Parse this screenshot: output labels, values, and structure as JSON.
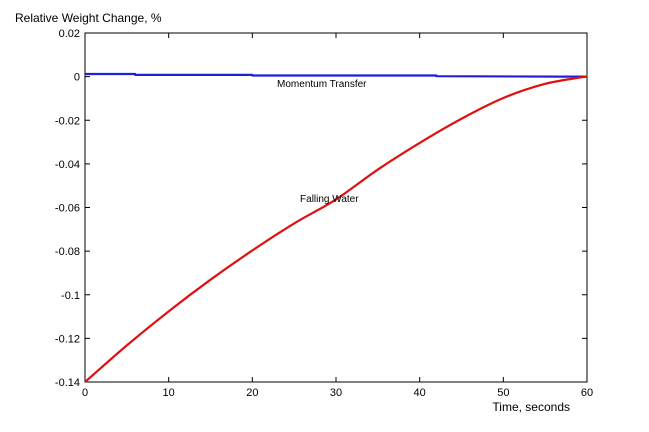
{
  "chart_data": {
    "type": "line",
    "title": "",
    "ylabel": "Relative Weight Change, %",
    "xlabel": "Time, seconds",
    "xlim": [
      0,
      60
    ],
    "ylim": [
      -0.14,
      0.02
    ],
    "x_ticks": [
      0,
      10,
      20,
      30,
      40,
      50,
      60
    ],
    "x_tick_labels": [
      "0",
      "10",
      "20",
      "30",
      "40",
      "50",
      "60"
    ],
    "y_ticks": [
      0.02,
      0,
      -0.02,
      -0.04,
      -0.06,
      -0.08,
      -0.1,
      -0.12,
      -0.14
    ],
    "y_tick_labels": [
      "0.02",
      "0",
      "-0.02",
      "-0.04",
      "-0.06",
      "-0.08",
      "-0.1",
      "-0.12",
      "-0.14"
    ],
    "grid": false,
    "legend": "none",
    "series": [
      {
        "name": "Momentum Transfer",
        "color": "#1f1fd9",
        "x": [
          0,
          6,
          6,
          20,
          20,
          42,
          42,
          57,
          60
        ],
        "y": [
          0.0012,
          0.0012,
          0.0008,
          0.0008,
          0.0005,
          0.0005,
          0.0002,
          0.0,
          0.0
        ]
      },
      {
        "name": "Falling Water",
        "color": "#e01010",
        "x": [
          0,
          5,
          10,
          15,
          20,
          25,
          30,
          35,
          40,
          45,
          50,
          55,
          59.5,
          60
        ],
        "y": [
          -0.14,
          -0.1232,
          -0.1076,
          -0.0931,
          -0.0797,
          -0.0673,
          -0.0563,
          -0.0426,
          -0.0304,
          -0.0193,
          -0.0098,
          -0.0033,
          -0.0002,
          0.0
        ]
      }
    ],
    "annotations": [
      {
        "text": "Momentum Transfer",
        "x": 28.3,
        "y": -0.0048
      },
      {
        "text": "Falling Water",
        "x": 29.2,
        "y": -0.0575
      }
    ]
  }
}
